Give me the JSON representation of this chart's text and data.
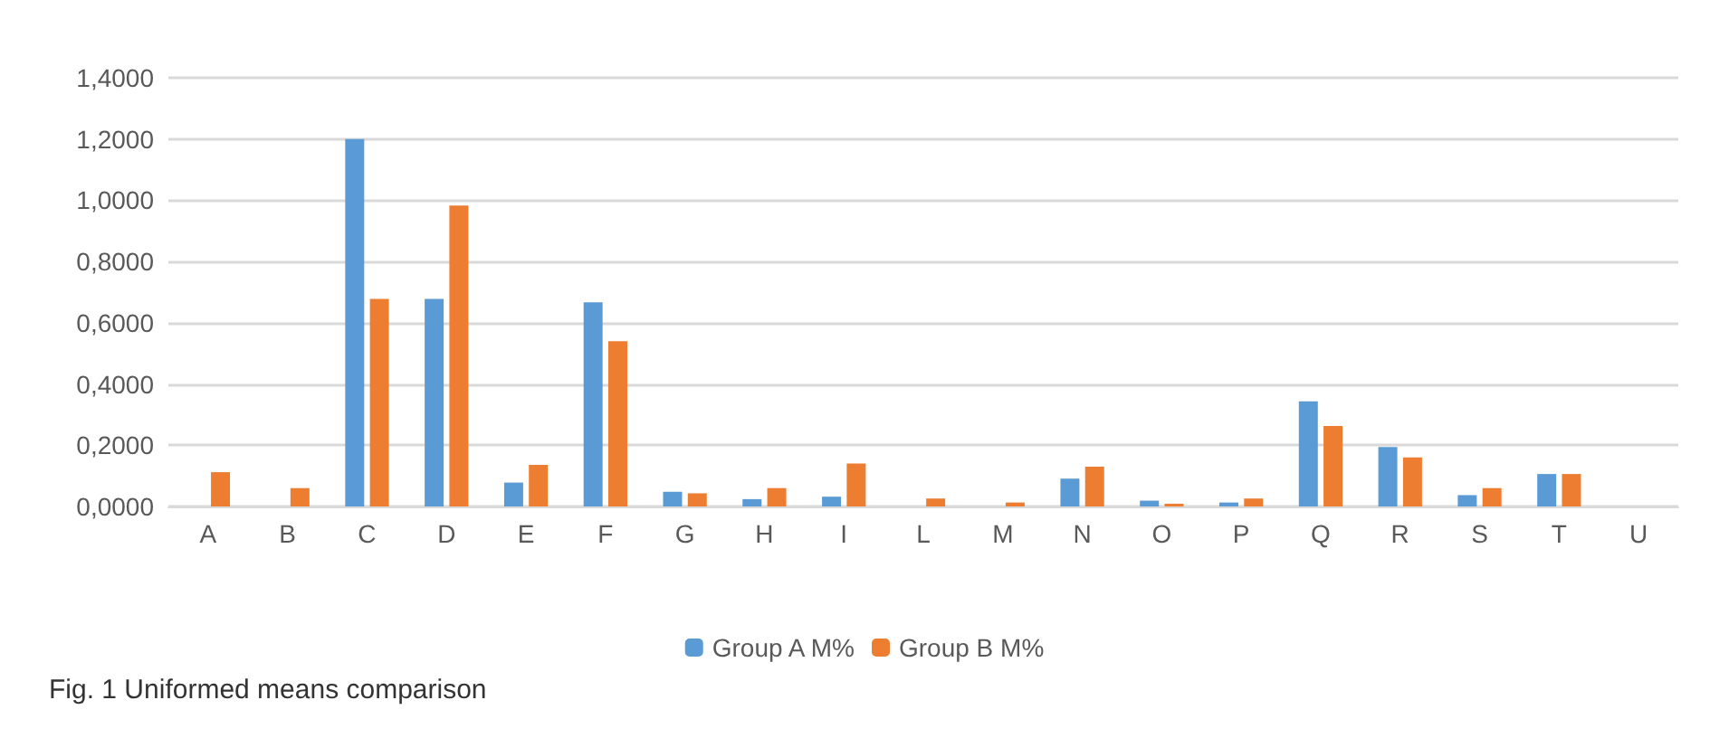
{
  "chart_data": {
    "type": "bar",
    "title": "Fig. 1 Uniformed means comparison",
    "categories": [
      "A",
      "B",
      "C",
      "D",
      "E",
      "F",
      "G",
      "H",
      "I",
      "L",
      "M",
      "N",
      "O",
      "P",
      "Q",
      "R",
      "S",
      "T",
      "U"
    ],
    "series": [
      {
        "name": "Group A M%",
        "color": "#5b9bd5",
        "values": [
          0,
          0,
          1.2,
          0.678,
          0.078,
          0.667,
          0.048,
          0.024,
          0.032,
          0,
          0,
          0.091,
          0.019,
          0.013,
          0.343,
          0.194,
          0.037,
          0.106,
          0
        ]
      },
      {
        "name": "Group B M%",
        "color": "#ed7d31",
        "values": [
          0.112,
          0.06,
          0.678,
          0.983,
          0.136,
          0.54,
          0.043,
          0.06,
          0.14,
          0.026,
          0.013,
          0.13,
          0.009,
          0.026,
          0.263,
          0.16,
          0.06,
          0.106,
          0
        ]
      }
    ],
    "ylim": [
      0,
      1.4
    ],
    "yticks": [
      {
        "value": 0,
        "label": "0,0000"
      },
      {
        "value": 0.2,
        "label": "0,2000"
      },
      {
        "value": 0.4,
        "label": "0,4000"
      },
      {
        "value": 0.6,
        "label": "0,6000"
      },
      {
        "value": 0.8,
        "label": "0,8000"
      },
      {
        "value": 1,
        "label": "1,0000"
      },
      {
        "value": 1.2,
        "label": "1,2000"
      },
      {
        "value": 1.4,
        "label": "1,4000"
      }
    ],
    "grid": "y",
    "legend": "bottom"
  }
}
